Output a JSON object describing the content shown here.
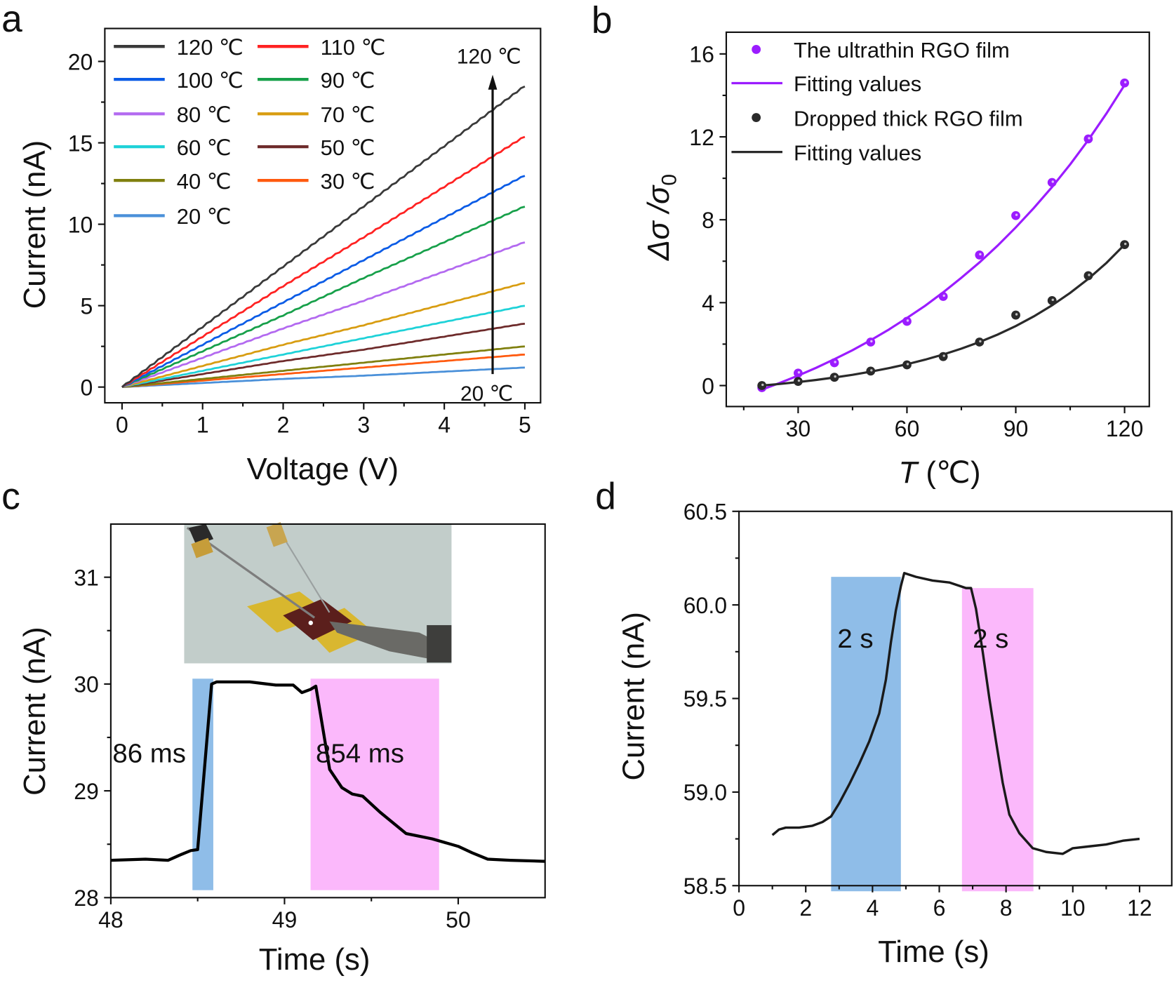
{
  "chart_data": [
    {
      "panel": "a",
      "type": "line",
      "title": "",
      "xlabel": "Voltage (V)",
      "ylabel": "Current (nA)",
      "xlim": [
        -0.2,
        5.2
      ],
      "ylim": [
        -1,
        22
      ],
      "xticks": [
        0,
        1,
        2,
        3,
        4,
        5
      ],
      "yticks": [
        0,
        5,
        10,
        15,
        20
      ],
      "grid": false,
      "legend_position": "top-left",
      "x": [
        0,
        1,
        2,
        3,
        4,
        5
      ],
      "series": [
        {
          "name": "120 ℃",
          "color": "#3a3a3a",
          "values": [
            0,
            3.7,
            7.4,
            11.1,
            14.8,
            18.5
          ]
        },
        {
          "name": "110 ℃",
          "color": "#ff2222",
          "values": [
            0,
            3.1,
            6.2,
            9.2,
            12.3,
            15.4
          ]
        },
        {
          "name": "100 ℃",
          "color": "#0b5ce6",
          "values": [
            0,
            2.6,
            5.2,
            7.8,
            10.4,
            13.0
          ]
        },
        {
          "name": "90 ℃",
          "color": "#17a04a",
          "values": [
            0,
            2.2,
            4.4,
            6.7,
            8.9,
            11.1
          ]
        },
        {
          "name": "80 ℃",
          "color": "#b36af0",
          "values": [
            0,
            1.8,
            3.6,
            5.3,
            7.1,
            8.9
          ]
        },
        {
          "name": "70 ℃",
          "color": "#d89d12",
          "values": [
            0,
            1.3,
            2.6,
            3.8,
            5.1,
            6.4
          ]
        },
        {
          "name": "60 ℃",
          "color": "#1fd2d8",
          "values": [
            0,
            1.0,
            2.0,
            3.0,
            4.0,
            5.0
          ]
        },
        {
          "name": "50 ℃",
          "color": "#6e2b2b",
          "values": [
            0,
            0.8,
            1.6,
            2.3,
            3.1,
            3.9
          ]
        },
        {
          "name": "40 ℃",
          "color": "#80800f",
          "values": [
            0,
            0.5,
            1.0,
            1.5,
            2.0,
            2.5
          ]
        },
        {
          "name": "30 ℃",
          "color": "#ff5a0f",
          "values": [
            0,
            0.4,
            0.8,
            1.2,
            1.6,
            2.0
          ]
        },
        {
          "name": "20 ℃",
          "color": "#4a90d9",
          "values": [
            0,
            0.25,
            0.5,
            0.7,
            0.95,
            1.2
          ]
        }
      ],
      "annotations": {
        "top_label": "120 ℃",
        "bottom_label": "20 ℃",
        "arrow": {
          "from_value": [
            4.6,
            0.8
          ],
          "to_value": [
            4.6,
            19.0
          ],
          "meaning": "increasing temperature"
        }
      }
    },
    {
      "panel": "b",
      "type": "scatter",
      "title": "",
      "xlabel_italic": "T",
      "xlabel_unit": " (℃)",
      "ylabel": "Δσ /σ₀",
      "ylabel_main": "Δσ /σ",
      "ylabel_sub": "0",
      "xlim": [
        13,
        130
      ],
      "ylim": [
        -1.0,
        17.2
      ],
      "xticks": [
        30,
        60,
        90,
        120
      ],
      "xminor": [
        15,
        45,
        75,
        105
      ],
      "yticks": [
        0,
        4,
        8,
        12,
        16
      ],
      "yminor": [
        2,
        6,
        10,
        14
      ],
      "grid": false,
      "legend_position": "top-left",
      "x": [
        20,
        30,
        40,
        50,
        60,
        70,
        80,
        90,
        100,
        110,
        120
      ],
      "series": [
        {
          "name": "The ultrathin RGO film",
          "kind": "points",
          "color": "#9b1cff",
          "values": [
            -0.1,
            0.6,
            1.1,
            2.1,
            3.1,
            4.3,
            6.3,
            8.2,
            9.8,
            11.9,
            14.6
          ]
        },
        {
          "name": "Fitting values",
          "kind": "fit",
          "color": "#9b1cff",
          "fit_x": [
            20,
            25,
            30,
            35,
            40,
            45,
            50,
            55,
            60,
            65,
            70,
            75,
            80,
            85,
            90,
            95,
            100,
            105,
            110,
            115,
            120
          ],
          "fit_values": [
            -0.2,
            0.13,
            0.48,
            0.86,
            1.27,
            1.71,
            2.19,
            2.7,
            3.26,
            3.85,
            4.5,
            5.2,
            5.94,
            6.75,
            7.63,
            8.57,
            9.58,
            10.67,
            11.85,
            13.13,
            14.5
          ]
        },
        {
          "name": "Dropped thick RGO film",
          "kind": "points",
          "color": "#2a2a2a",
          "values": [
            0.0,
            0.2,
            0.4,
            0.7,
            1.0,
            1.4,
            2.1,
            3.4,
            4.1,
            5.3,
            6.8
          ]
        },
        {
          "name": "Fitting values",
          "kind": "fit",
          "color": "#2a2a2a",
          "fit_x": [
            20,
            25,
            30,
            35,
            40,
            45,
            50,
            55,
            60,
            65,
            70,
            75,
            80,
            85,
            90,
            95,
            100,
            105,
            110,
            115,
            120
          ],
          "fit_values": [
            0,
            0.08,
            0.17,
            0.27,
            0.39,
            0.52,
            0.67,
            0.84,
            1.03,
            1.25,
            1.5,
            1.78,
            2.1,
            2.46,
            2.87,
            3.34,
            3.87,
            4.47,
            5.15,
            5.92,
            6.8
          ]
        }
      ]
    },
    {
      "panel": "c",
      "type": "line",
      "title": "",
      "xlabel": "Time (s)",
      "ylabel": "Current (nA)",
      "xlim": [
        48,
        50.5
      ],
      "ylim": [
        28,
        31.5
      ],
      "xticks": [
        48,
        49,
        50
      ],
      "xminor": [
        48.5,
        49.5
      ],
      "yticks": [
        28,
        29,
        30,
        31
      ],
      "yminor": [
        28.5,
        29.5,
        30.5
      ],
      "grid": false,
      "series": [
        {
          "name": "response",
          "color": "#000000",
          "x": [
            48.0,
            48.2,
            48.33,
            48.4,
            48.46,
            48.5,
            48.58,
            48.61,
            48.8,
            48.95,
            49.05,
            49.1,
            49.15,
            49.18,
            49.26,
            49.33,
            49.39,
            49.45,
            49.55,
            49.7,
            49.85,
            50.0,
            50.08,
            50.17,
            50.3,
            50.5
          ],
          "values": [
            28.35,
            28.36,
            28.35,
            28.4,
            28.44,
            28.45,
            30.0,
            30.02,
            30.02,
            29.99,
            29.99,
            29.92,
            29.95,
            29.98,
            29.2,
            29.03,
            28.97,
            28.95,
            28.8,
            28.6,
            28.55,
            28.48,
            28.42,
            28.36,
            28.35,
            28.34
          ]
        }
      ],
      "shaded_regions": [
        {
          "name": "rise",
          "x": [
            48.47,
            48.59
          ],
          "y": [
            28.07,
            30.05
          ],
          "color": "#8fbde8",
          "label": "86 ms",
          "label_value_pos": [
            48.01,
            29.35
          ]
        },
        {
          "name": "decay",
          "x": [
            49.15,
            49.89
          ],
          "y": [
            28.07,
            30.05
          ],
          "color": "#fbb8fb",
          "label": "854 ms",
          "label_value_pos": [
            49.18,
            29.35
          ]
        }
      ],
      "inset": "photo of device on probe station"
    },
    {
      "panel": "d",
      "type": "line",
      "title": "",
      "xlabel": "Time (s)",
      "ylabel": "Current (nA)",
      "xlim": [
        0,
        13
      ],
      "ylim": [
        58.5,
        60.5
      ],
      "xticks": [
        0,
        2,
        4,
        6,
        8,
        10,
        12
      ],
      "xtick_labels": [
        "0",
        "2",
        "4",
        "6",
        "8",
        "10",
        "12"
      ],
      "xminor": [
        1,
        3,
        5,
        7,
        9,
        11
      ],
      "yticks": [
        58.5,
        59.0,
        59.5,
        60.0,
        60.5
      ],
      "ytick_labels": [
        "58.5",
        "59.0",
        "59.5",
        "60.0",
        "60.5"
      ],
      "yminor": [
        58.75,
        59.25,
        59.75,
        60.25
      ],
      "grid": false,
      "series": [
        {
          "name": "response",
          "color": "#1a1a1a",
          "x": [
            1.0,
            1.2,
            1.4,
            1.8,
            2.2,
            2.5,
            2.76,
            3.0,
            3.3,
            3.6,
            3.9,
            4.2,
            4.4,
            4.55,
            4.7,
            4.85,
            4.95,
            5.3,
            5.8,
            6.3,
            6.8,
            6.95,
            7.1,
            7.3,
            7.5,
            7.7,
            7.9,
            8.1,
            8.4,
            8.8,
            9.2,
            9.7,
            10.0,
            10.5,
            11.0,
            11.5,
            12.0
          ],
          "values": [
            58.77,
            58.8,
            58.81,
            58.81,
            58.82,
            58.84,
            58.87,
            58.94,
            59.04,
            59.15,
            59.27,
            59.42,
            59.6,
            59.8,
            59.97,
            60.1,
            60.17,
            60.15,
            60.13,
            60.12,
            60.09,
            60.09,
            59.98,
            59.75,
            59.5,
            59.27,
            59.05,
            58.88,
            58.78,
            58.7,
            58.68,
            58.67,
            58.7,
            58.71,
            58.72,
            58.74,
            58.75
          ]
        }
      ],
      "shaded_regions": [
        {
          "name": "rise",
          "x": [
            2.76,
            4.85
          ],
          "y": [
            58.47,
            60.15
          ],
          "color": "#8fbde8",
          "label": "2 s",
          "label_value_pos": [
            2.95,
            59.82
          ]
        },
        {
          "name": "decay",
          "x": [
            6.68,
            8.82
          ],
          "y": [
            58.47,
            60.09
          ],
          "color": "#fbb8fb",
          "label": "2 s",
          "label_value_pos": [
            7.0,
            59.82
          ]
        }
      ]
    }
  ],
  "panel_letters": [
    "a",
    "b",
    "c",
    "d"
  ]
}
